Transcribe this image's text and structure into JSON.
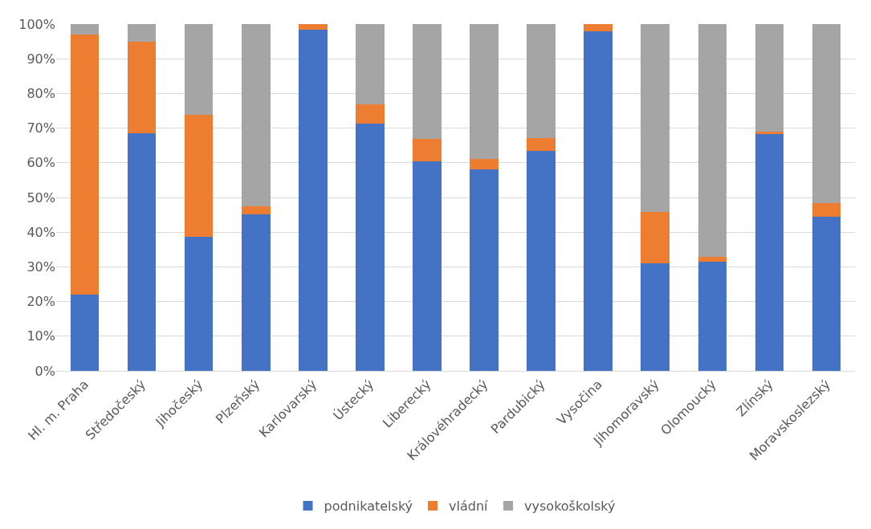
{
  "chart_data": {
    "type": "bar",
    "stacked": true,
    "categories": [
      "Hl. m. Praha",
      "Středočeský",
      "Jihočeský",
      "Plzeňský",
      "Karlovarský",
      "Ústecký",
      "Liberecký",
      "Královéhradecký",
      "Pardubický",
      "Vysočina",
      "Jihomoravský",
      "Olomoucký",
      "Zlínský",
      "Moravskoslezský"
    ],
    "series": [
      {
        "name": "podnikatelský",
        "color": "#4472c4",
        "values": [
          22,
          68.5,
          38.7,
          45.2,
          98.4,
          71.3,
          60.5,
          58.1,
          63.5,
          98,
          31,
          31.5,
          68.2,
          44.5
        ]
      },
      {
        "name": "vládní",
        "color": "#ed7d31",
        "values": [
          75,
          26.5,
          35.1,
          2.3,
          1.6,
          5.5,
          6.5,
          3.1,
          3.6,
          2,
          14.9,
          1.4,
          0.8,
          3.9
        ]
      },
      {
        "name": "vysokoškolský",
        "color": "#a5a5a5",
        "values": [
          3,
          5,
          26.2,
          52.5,
          0,
          23.2,
          33,
          38.8,
          32.9,
          0,
          54.1,
          67.1,
          31,
          51.6
        ]
      }
    ],
    "ylim": [
      0,
      100
    ],
    "yticks": [
      {
        "value": 0,
        "label": "0%"
      },
      {
        "value": 10,
        "label": "10%"
      },
      {
        "value": 20,
        "label": "20%"
      },
      {
        "value": 30,
        "label": "30%"
      },
      {
        "value": 40,
        "label": "40%"
      },
      {
        "value": 50,
        "label": "50%"
      },
      {
        "value": 60,
        "label": "60%"
      },
      {
        "value": 70,
        "label": "70%"
      },
      {
        "value": 80,
        "label": "80%"
      },
      {
        "value": 90,
        "label": "90%"
      },
      {
        "value": 100,
        "label": "100%"
      }
    ],
    "grid": "y",
    "legend": "bottom"
  }
}
